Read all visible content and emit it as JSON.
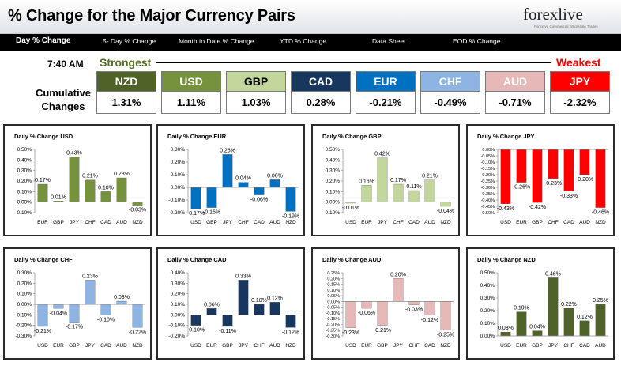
{
  "header": {
    "title": "% Change for the Major Currency Pairs",
    "logo_text": "forexlive",
    "logo_tagline": "Forexlive Commercial Wholesale Trades"
  },
  "nav": {
    "items": [
      "Day % Change",
      "5- Day % Change",
      "Month to Date % Change",
      "YTD % Change",
      "Data Sheet",
      "EOD % Change"
    ]
  },
  "summary": {
    "time": "7:40 AM",
    "strongest_label": "Strongest",
    "weakest_label": "Weakest",
    "cumulative_label": "Cumulative Changes",
    "currencies": [
      {
        "code": "NZD",
        "value": "1.31%",
        "bg": "#4f6228",
        "fg": "#ffffff"
      },
      {
        "code": "USD",
        "value": "1.11%",
        "bg": "#76923c",
        "fg": "#ffffff"
      },
      {
        "code": "GBP",
        "value": "1.03%",
        "bg": "#c3d69b",
        "fg": "#000000"
      },
      {
        "code": "CAD",
        "value": "0.28%",
        "bg": "#17375e",
        "fg": "#ffffff"
      },
      {
        "code": "EUR",
        "value": "-0.21%",
        "bg": "#0070c0",
        "fg": "#ffffff"
      },
      {
        "code": "CHF",
        "value": "-0.49%",
        "bg": "#8db4e2",
        "fg": "#ffffff"
      },
      {
        "code": "AUD",
        "value": "-0.71%",
        "bg": "#e6b8b7",
        "fg": "#ffffff"
      },
      {
        "code": "JPY",
        "value": "-2.32%",
        "bg": "#ff0000",
        "fg": "#ffffff"
      }
    ]
  },
  "chart_data": [
    {
      "type": "bar",
      "title": "Daily % Change USD",
      "color": "#76923c",
      "categories": [
        "EUR",
        "GBP",
        "JPY",
        "CHF",
        "CAD",
        "AUD",
        "NZD"
      ],
      "values": [
        0.17,
        0.01,
        0.43,
        0.21,
        0.1,
        0.23,
        -0.03
      ],
      "labels": [
        "0.17%",
        "0.01%",
        "0.43%",
        "0.21%",
        "0.10%",
        "0.23%",
        "-0.03%"
      ],
      "ylim": [
        -0.1,
        0.5
      ],
      "yticks": [
        -0.1,
        0.0,
        0.1,
        0.2,
        0.3,
        0.4,
        0.5
      ],
      "ytick_labels": [
        "-0.10%",
        "0.00%",
        "0.10%",
        "0.20%",
        "0.30%",
        "0.40%",
        "0.50%"
      ]
    },
    {
      "type": "bar",
      "title": "Daily % Change EUR",
      "color": "#0070c0",
      "categories": [
        "USD",
        "GBP",
        "JPY",
        "CHF",
        "CAD",
        "AUD",
        "NZD"
      ],
      "values": [
        -0.17,
        -0.16,
        0.26,
        0.04,
        -0.06,
        0.06,
        -0.19
      ],
      "labels": [
        "-0.17%",
        "-0.16%",
        "0.26%",
        "0.04%",
        "-0.06%",
        "0.06%",
        "-0.19%"
      ],
      "ylim": [
        -0.2,
        0.3
      ],
      "yticks": [
        -0.2,
        -0.1,
        0.0,
        0.1,
        0.2,
        0.3
      ],
      "ytick_labels": [
        "-0.20%",
        "-0.10%",
        "0.00%",
        "0.10%",
        "0.20%",
        "0.30%"
      ]
    },
    {
      "type": "bar",
      "title": "Daily % Change GBP",
      "color": "#c3d69b",
      "categories": [
        "USD",
        "EUR",
        "JPY",
        "CHF",
        "CAD",
        "AUD",
        "NZD"
      ],
      "values": [
        -0.01,
        0.16,
        0.42,
        0.17,
        0.11,
        0.21,
        -0.04
      ],
      "labels": [
        "-0.01%",
        "0.16%",
        "0.42%",
        "0.17%",
        "0.11%",
        "0.21%",
        "-0.04%"
      ],
      "ylim": [
        -0.1,
        0.5
      ],
      "yticks": [
        -0.1,
        0.0,
        0.1,
        0.2,
        0.3,
        0.4,
        0.5
      ],
      "ytick_labels": [
        "-0.10%",
        "0.00%",
        "0.10%",
        "0.20%",
        "0.30%",
        "0.40%",
        "0.50%"
      ]
    },
    {
      "type": "bar",
      "title": "Daily % Change JPY",
      "color": "#ff0000",
      "categories": [
        "USD",
        "EUR",
        "GBP",
        "CHF",
        "CAD",
        "AUD",
        "NZD"
      ],
      "values": [
        -0.43,
        -0.26,
        -0.42,
        -0.23,
        -0.33,
        -0.2,
        -0.46
      ],
      "labels": [
        "-0.43%",
        "-0.26%",
        "-0.42%",
        "-0.23%",
        "-0.33%",
        "-0.20%",
        "-0.46%"
      ],
      "ylim": [
        -0.5,
        0.0
      ],
      "yticks": [
        -0.5,
        -0.45,
        -0.4,
        -0.35,
        -0.3,
        -0.25,
        -0.2,
        -0.15,
        -0.1,
        -0.05,
        0.0
      ],
      "ytick_labels": [
        "-0.50%",
        "-0.45%",
        "-0.40%",
        "-0.35%",
        "-0.30%",
        "-0.25%",
        "-0.20%",
        "-0.15%",
        "-0.10%",
        "-0.05%",
        "0.00%"
      ]
    },
    {
      "type": "bar",
      "title": "Daily % Change CHF",
      "color": "#8db4e2",
      "categories": [
        "USD",
        "EUR",
        "GBP",
        "JPY",
        "CAD",
        "AUD",
        "NZD"
      ],
      "values": [
        -0.21,
        -0.04,
        -0.17,
        0.23,
        -0.1,
        0.03,
        -0.22
      ],
      "labels": [
        "-0.21%",
        "-0.04%",
        "-0.17%",
        "0.23%",
        "-0.10%",
        "0.03%",
        "-0.22%"
      ],
      "ylim": [
        -0.3,
        0.3
      ],
      "yticks": [
        -0.3,
        -0.2,
        -0.1,
        0.0,
        0.1,
        0.2,
        0.3
      ],
      "ytick_labels": [
        "-0.30%",
        "-0.20%",
        "-0.10%",
        "0.00%",
        "0.10%",
        "0.20%",
        "0.30%"
      ]
    },
    {
      "type": "bar",
      "title": "Daily % Change CAD",
      "color": "#17375e",
      "categories": [
        "USD",
        "EUR",
        "GBP",
        "JPY",
        "CHF",
        "AUD",
        "NZD"
      ],
      "values": [
        -0.1,
        0.06,
        -0.11,
        0.33,
        0.1,
        0.12,
        -0.12
      ],
      "labels": [
        "-0.10%",
        "0.06%",
        "-0.11%",
        "0.33%",
        "0.10%",
        "0.12%",
        "-0.12%"
      ],
      "ylim": [
        -0.2,
        0.4
      ],
      "yticks": [
        -0.2,
        -0.1,
        0.0,
        0.1,
        0.2,
        0.3,
        0.4
      ],
      "ytick_labels": [
        "-0.20%",
        "-0.10%",
        "0.00%",
        "0.10%",
        "0.20%",
        "0.30%",
        "0.40%"
      ]
    },
    {
      "type": "bar",
      "title": "Daily % Change AUD",
      "color": "#e6b8b7",
      "categories": [
        "USD",
        "EUR",
        "GBP",
        "JPY",
        "CHF",
        "CAD",
        "NZD"
      ],
      "values": [
        -0.23,
        -0.06,
        -0.21,
        0.2,
        -0.03,
        -0.12,
        -0.25
      ],
      "labels": [
        "-0.23%",
        "-0.06%",
        "-0.21%",
        "0.20%",
        "-0.03%",
        "-0.12%",
        "-0.25%"
      ],
      "ylim": [
        -0.3,
        0.25
      ],
      "yticks": [
        -0.3,
        -0.25,
        -0.2,
        -0.15,
        -0.1,
        -0.05,
        0.0,
        0.05,
        0.1,
        0.15,
        0.2,
        0.25
      ],
      "ytick_labels": [
        "-0.30%",
        "-0.25%",
        "-0.20%",
        "-0.15%",
        "-0.10%",
        "-0.05%",
        "0.00%",
        "0.05%",
        "0.10%",
        "0.15%",
        "0.20%",
        "0.25%"
      ]
    },
    {
      "type": "bar",
      "title": "Daily % Change NZD",
      "color": "#4f6228",
      "categories": [
        "USD",
        "EUR",
        "GBP",
        "JPY",
        "CHF",
        "CAD",
        "AUD"
      ],
      "values": [
        0.03,
        0.19,
        0.04,
        0.46,
        0.22,
        0.12,
        0.25
      ],
      "labels": [
        "0.03%",
        "0.19%",
        "0.04%",
        "0.46%",
        "0.22%",
        "0.12%",
        "0.25%"
      ],
      "ylim": [
        0.0,
        0.5
      ],
      "yticks": [
        0.0,
        0.1,
        0.2,
        0.3,
        0.4,
        0.5
      ],
      "ytick_labels": [
        "0.00%",
        "0.10%",
        "0.20%",
        "0.30%",
        "0.40%",
        "0.50%"
      ]
    }
  ]
}
